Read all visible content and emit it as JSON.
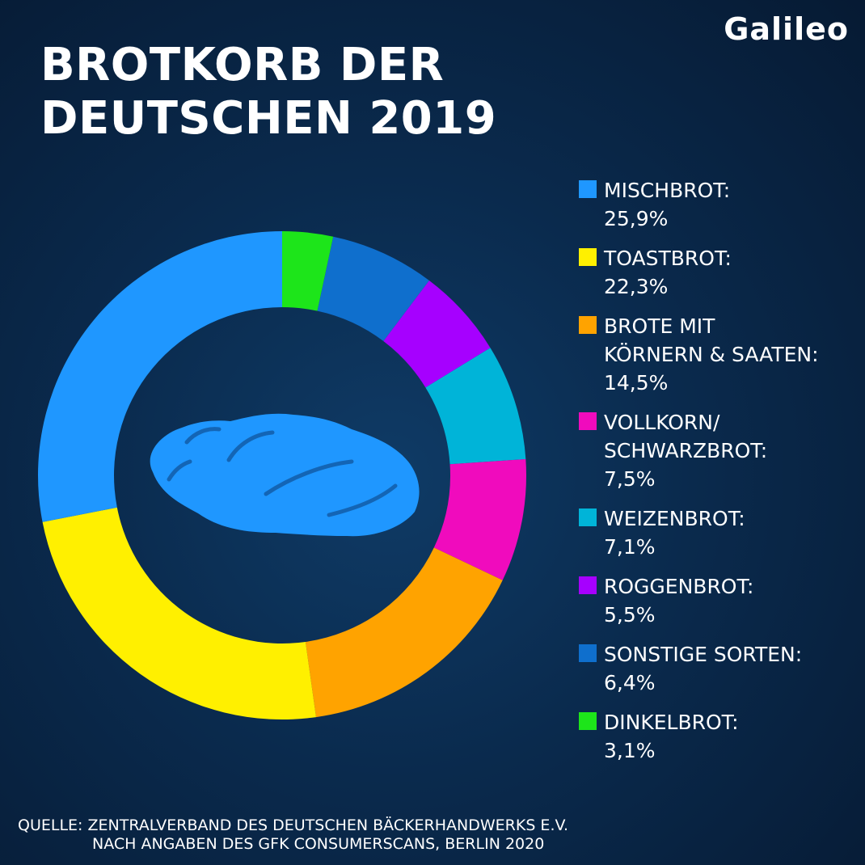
{
  "logo": "Galileo",
  "title_line1": "BROTKORB DER",
  "title_line2": "DEUTSCHEN 2019",
  "chart_data": {
    "type": "pie",
    "donut": true,
    "categories": [
      "Dinkelbrot",
      "Sonstige Sorten",
      "Roggenbrot",
      "Weizenbrot",
      "Vollkorn/ Schwarzbrot",
      "Brote mit Körnern & Saaten",
      "Toastbrot",
      "Mischbrot"
    ],
    "values": [
      3.1,
      6.4,
      5.5,
      7.1,
      7.5,
      14.5,
      22.3,
      25.9
    ],
    "colors": [
      "#1de51a",
      "#0f6fcd",
      "#a600ff",
      "#00b4d8",
      "#f00bbd",
      "#ffa300",
      "#fff000",
      "#1f97ff"
    ],
    "start_angle_deg": 0,
    "direction": "clockwise",
    "center_icon": "bread-loaf-icon",
    "center_icon_color": "#1f97ff"
  },
  "legend": [
    {
      "label": "MISCHBROT:",
      "value": "25,9%",
      "color": "#1f97ff"
    },
    {
      "label": "TOASTBROT:",
      "value": "22,3%",
      "color": "#fff000"
    },
    {
      "label": "BROTE MIT\nKÖRNERN & SAATEN:",
      "value": "14,5%",
      "color": "#ffa300"
    },
    {
      "label": "VOLLKORN/\nSCHWARZBROT:",
      "value": "7,5%",
      "color": "#f00bbd"
    },
    {
      "label": "WEIZENBROT:",
      "value": "7,1%",
      "color": "#00b4d8"
    },
    {
      "label": "ROGGENBROT:",
      "value": "5,5%",
      "color": "#a600ff"
    },
    {
      "label": "SONSTIGE SORTEN:",
      "value": "6,4%",
      "color": "#0f6fcd"
    },
    {
      "label": "DINKELBROT:",
      "value": "3,1%",
      "color": "#1de51a"
    }
  ],
  "source_line1": "QUELLE: ZENTRALVERBAND DES DEUTSCHEN BÄCKERHANDWERKS E.V.",
  "source_line2": "NACH ANGABEN DES GFK CONSUMERSCANS, BERLIN 2020"
}
